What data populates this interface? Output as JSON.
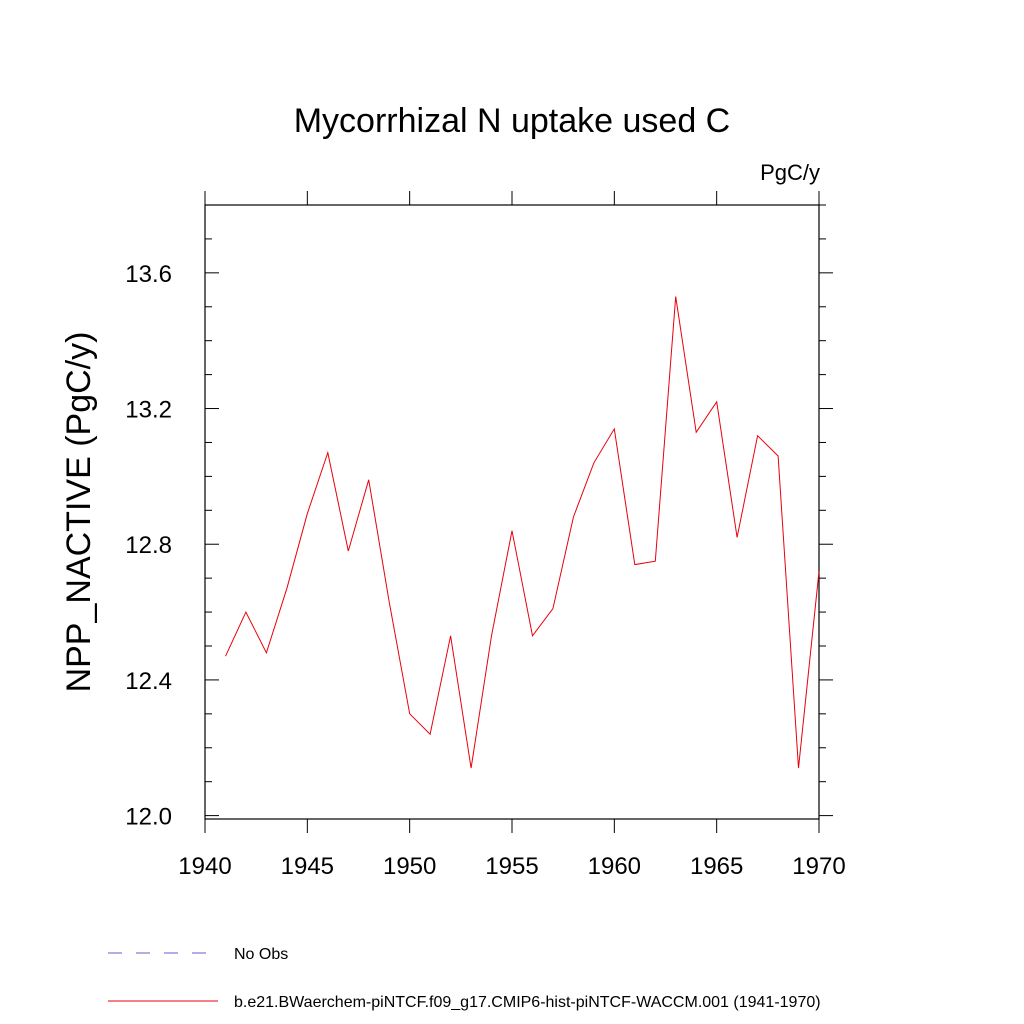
{
  "chart_data": {
    "type": "line",
    "title": "Mycorrhizal N uptake used C",
    "units_label": "PgC/y",
    "ylabel": "NPP_NACTIVE  (PgC/y)",
    "xlabel": "",
    "xlim": [
      1940,
      1970
    ],
    "ylim": [
      11.99,
      13.8
    ],
    "x_ticks": [
      "1940",
      "1945",
      "1950",
      "1955",
      "1960",
      "1965",
      "1970"
    ],
    "y_ticks": [
      "12.0",
      "12.4",
      "12.8",
      "13.2",
      "13.6"
    ],
    "x": [
      1941,
      1942,
      1943,
      1944,
      1945,
      1946,
      1947,
      1948,
      1949,
      1950,
      1951,
      1952,
      1953,
      1954,
      1955,
      1956,
      1957,
      1958,
      1959,
      1960,
      1961,
      1962,
      1963,
      1964,
      1965,
      1966,
      1967,
      1968,
      1969,
      1970
    ],
    "series": [
      {
        "name": "b.e21.BWaerchem-piNTCF.f09_g17.CMIP6-hist-piNTCF-WACCM.001 (1941-1970)",
        "color": "#e8000b",
        "values": [
          12.47,
          12.6,
          12.48,
          12.67,
          12.89,
          13.07,
          12.78,
          12.99,
          12.63,
          12.3,
          12.24,
          12.53,
          12.14,
          12.53,
          12.84,
          12.53,
          12.61,
          12.88,
          13.04,
          13.14,
          12.74,
          12.75,
          13.53,
          13.13,
          13.22,
          12.82,
          13.12,
          13.06,
          12.14,
          12.72
        ]
      }
    ],
    "legend": [
      {
        "label": "No Obs",
        "style": "dashed",
        "color": "#6a5acd"
      },
      {
        "label": "b.e21.BWaerchem-piNTCF.f09_g17.CMIP6-hist-piNTCF-WACCM.001 (1941-1970)",
        "style": "solid",
        "color": "#e8000b"
      }
    ],
    "grid": false,
    "legend_position": "bottom-left"
  }
}
